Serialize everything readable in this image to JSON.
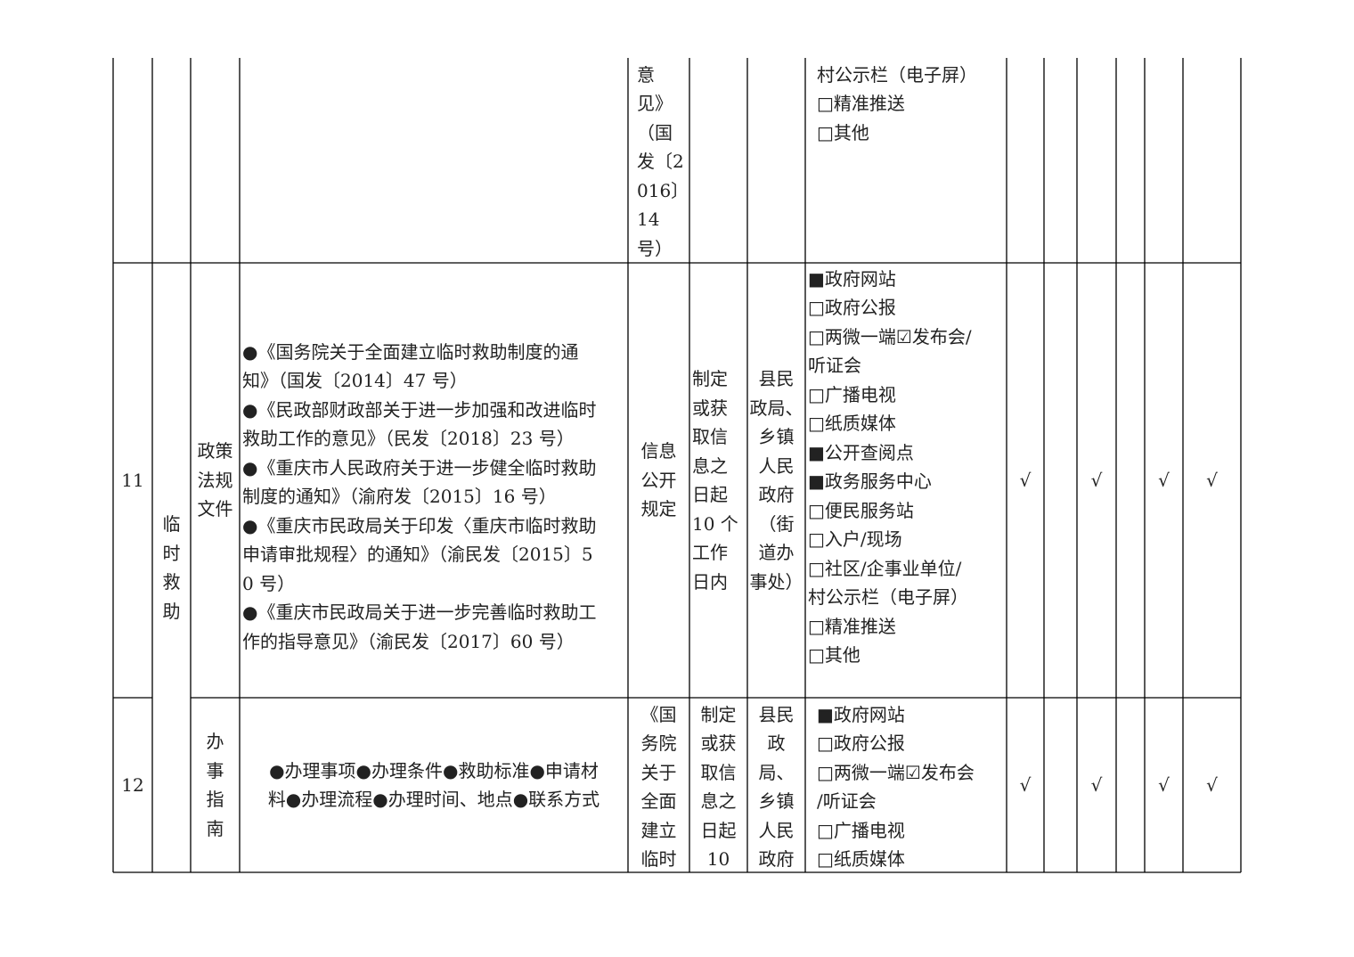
{
  "table": {
    "rows": [
      {
        "basis": [
          "意",
          "见》",
          "（国",
          "发〔2",
          "016〕",
          "14",
          "号）"
        ],
        "channels": [
          "村公示栏（电子屏）",
          "□精准推送",
          "□其他"
        ]
      },
      {
        "number": "11",
        "category": [
          "临",
          "时",
          "救",
          "助"
        ],
        "item": [
          "政策",
          "法规",
          "文件"
        ],
        "content": [
          "●《国务院关于全面建立临时救助制度的通",
          "知》（国发〔2014〕47 号）",
          "●《民政部财政部关于进一步加强和改进临时",
          "救助工作的意见》（民发〔2018〕23 号）",
          "●《重庆市人民政府关于进一步健全临时救助",
          "制度的通知》（渝府发〔2015〕16 号）",
          "●《重庆市民政局关于印发〈重庆市临时救助",
          "申请审批规程〉的通知》（渝民发〔2015〕5",
          "0 号）",
          "●《重庆市民政局关于进一步完善临时救助工",
          "作的指导意见》（渝民发〔2017〕60 号）"
        ],
        "basis": [
          "信息",
          "公开",
          "规定"
        ],
        "time": [
          "制定",
          "或获",
          "取信",
          "息之",
          "日起",
          "10 个",
          "工作",
          "日内"
        ],
        "subject": [
          "县民",
          "政局、",
          "乡镇",
          "人民",
          "政府",
          "（街",
          "道办",
          "事处）"
        ],
        "channels": [
          "■政府网站",
          "□政府公报",
          "□两微一端☑发布会/",
          "听证会",
          "□广播电视",
          "□纸质媒体",
          "■公开查阅点",
          "■政务服务中心",
          "□便民服务站",
          "□入户/现场",
          "□社区/企事业单位/",
          "村公示栏（电子屏）",
          "□精准推送",
          "□其他"
        ],
        "checks": [
          "√",
          "√",
          "√",
          "√"
        ]
      },
      {
        "number": "12",
        "item": [
          "办",
          "事",
          "指",
          "南"
        ],
        "content": [
          "●办理事项●办理条件●救助标准●申请材",
          "料●办理流程●办理时间、地点●联系方式"
        ],
        "basis": [
          "《国",
          "务院",
          "关于",
          "全面",
          "建立",
          "临时"
        ],
        "time": [
          "制定",
          "或获",
          "取信",
          "息之",
          "日起",
          "10"
        ],
        "subject": [
          "县民",
          "政",
          "局、",
          "乡镇",
          "人民",
          "政府"
        ],
        "channels": [
          "■政府网站",
          "□政府公报",
          "□两微一端☑发布会",
          "/听证会",
          "□广播电视",
          "□纸质媒体"
        ],
        "checks": [
          "√",
          "√",
          "√",
          "√"
        ]
      }
    ]
  }
}
